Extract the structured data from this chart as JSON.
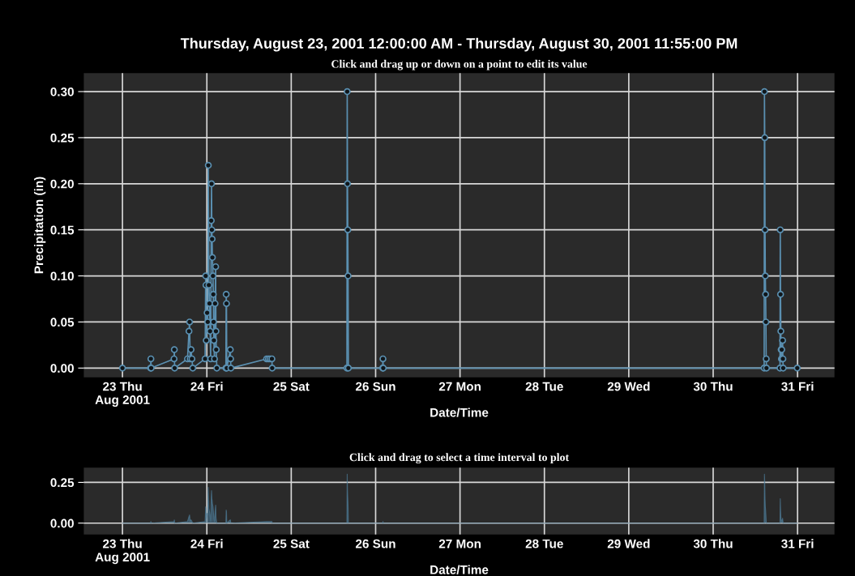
{
  "chart_data": [
    {
      "type": "line",
      "title": "Thursday, August 23, 2001 12:00:00 AM - Thursday, August 30, 2001 11:55:00 PM",
      "subtitle": "Click and drag up or down on a point to edit its value",
      "xlabel": "Date/Time",
      "ylabel": "Precipitation (in)",
      "xlim": [
        "2001-08-22T13:00",
        "2001-08-31T10:30"
      ],
      "ylim": [
        -0.01,
        0.32
      ],
      "xticks": [
        {
          "value": "2001-08-23",
          "label": "23 Thu\nAug 2001"
        },
        {
          "value": "2001-08-24",
          "label": "24 Fri"
        },
        {
          "value": "2001-08-25",
          "label": "25 Sat"
        },
        {
          "value": "2001-08-26",
          "label": "26 Sun"
        },
        {
          "value": "2001-08-27",
          "label": "27 Mon"
        },
        {
          "value": "2001-08-28",
          "label": "28 Tue"
        },
        {
          "value": "2001-08-29",
          "label": "29 Wed"
        },
        {
          "value": "2001-08-30",
          "label": "30 Thu"
        },
        {
          "value": "2001-08-31",
          "label": "31 Fri"
        }
      ],
      "yticks": [
        {
          "value": 0,
          "label": "0.00"
        },
        {
          "value": 0.05,
          "label": "0.05"
        },
        {
          "value": 0.1,
          "label": "0.10"
        },
        {
          "value": 0.15,
          "label": "0.15"
        },
        {
          "value": 0.2,
          "label": "0.20"
        },
        {
          "value": 0.25,
          "label": "0.25"
        },
        {
          "value": 0.3,
          "label": "0.30"
        }
      ],
      "grid": true,
      "marker": "circle",
      "line_style": "solid",
      "series": [
        {
          "color": "#5a8fb0",
          "x": [
            "2001-08-23T00:00",
            "2001-08-23T08:00",
            "2001-08-23T08:05",
            "2001-08-23T08:10",
            "2001-08-23T14:40",
            "2001-08-23T14:45",
            "2001-08-23T14:50",
            "2001-08-23T18:30",
            "2001-08-23T18:55",
            "2001-08-23T19:05",
            "2001-08-23T19:15",
            "2001-08-23T19:30",
            "2001-08-23T19:45",
            "2001-08-23T20:00",
            "2001-08-23T23:30",
            "2001-08-23T23:40",
            "2001-08-23T23:45",
            "2001-08-23T23:50",
            "2001-08-24T00:05",
            "2001-08-24T00:15",
            "2001-08-24T00:25",
            "2001-08-24T00:35",
            "2001-08-24T00:45",
            "2001-08-24T00:55",
            "2001-08-24T01:05",
            "2001-08-24T01:15",
            "2001-08-24T01:20",
            "2001-08-24T01:25",
            "2001-08-24T01:30",
            "2001-08-24T01:35",
            "2001-08-24T01:45",
            "2001-08-24T01:50",
            "2001-08-24T01:55",
            "2001-08-24T02:00",
            "2001-08-24T02:10",
            "2001-08-24T02:20",
            "2001-08-24T02:30",
            "2001-08-24T02:35",
            "2001-08-24T02:40",
            "2001-08-24T02:50",
            "2001-08-24T05:25",
            "2001-08-24T05:30",
            "2001-08-24T05:35",
            "2001-08-24T05:40",
            "2001-08-24T06:40",
            "2001-08-24T06:45",
            "2001-08-24T06:50",
            "2001-08-24T17:00",
            "2001-08-24T17:30",
            "2001-08-24T18:00",
            "2001-08-24T18:30",
            "2001-08-24T18:35",
            "2001-08-25T15:50",
            "2001-08-25T15:55",
            "2001-08-25T16:00",
            "2001-08-25T16:05",
            "2001-08-25T16:10",
            "2001-08-25T16:15",
            "2001-08-26T02:00",
            "2001-08-26T02:05",
            "2001-08-26T02:10",
            "2001-08-30T14:30",
            "2001-08-30T14:35",
            "2001-08-30T14:40",
            "2001-08-30T14:45",
            "2001-08-30T14:50",
            "2001-08-30T14:55",
            "2001-08-30T15:00",
            "2001-08-30T15:05",
            "2001-08-30T15:10",
            "2001-08-30T19:00",
            "2001-08-30T19:05",
            "2001-08-30T19:10",
            "2001-08-30T19:15",
            "2001-08-30T19:20",
            "2001-08-30T19:25",
            "2001-08-30T19:30",
            "2001-08-30T19:35",
            "2001-08-30T19:45",
            "2001-08-30T19:50",
            "2001-08-30T19:55",
            "2001-08-30T23:55"
          ],
          "values": [
            0,
            0,
            0.01,
            0,
            0.01,
            0.02,
            0,
            0.01,
            0.04,
            0.05,
            0.01,
            0.02,
            0.01,
            0,
            0.01,
            0.1,
            0.09,
            0.03,
            0.06,
            0.05,
            0.22,
            0.09,
            0.07,
            0.04,
            0.01,
            0.16,
            0.2,
            0.15,
            0.14,
            0.12,
            0.1,
            0.08,
            0.05,
            0.03,
            0.01,
            0.07,
            0.11,
            0.04,
            0.02,
            0,
            0,
            0.08,
            0.07,
            0,
            0.02,
            0.01,
            0,
            0.01,
            0.01,
            0.01,
            0.01,
            0,
            0,
            0.3,
            0.2,
            0.15,
            0.1,
            0,
            0,
            0.01,
            0,
            0,
            0.3,
            0.25,
            0.15,
            0.1,
            0.08,
            0.05,
            0.01,
            0,
            0,
            0.15,
            0.08,
            0.04,
            0.02,
            0.01,
            0.02,
            0.01,
            0.03,
            0.01,
            0,
            0
          ]
        }
      ]
    },
    {
      "type": "area",
      "title": "Click and drag to select a time interval to plot",
      "xlabel": "Date/Time",
      "xlim": [
        "2001-08-22T13:00",
        "2001-08-31T10:30"
      ],
      "ylim": [
        -0.07,
        0.34
      ],
      "xticks": [
        {
          "value": "2001-08-23",
          "label": "23 Thu\nAug 2001"
        },
        {
          "value": "2001-08-24",
          "label": "24 Fri"
        },
        {
          "value": "2001-08-25",
          "label": "25 Sat"
        },
        {
          "value": "2001-08-26",
          "label": "26 Sun"
        },
        {
          "value": "2001-08-27",
          "label": "27 Mon"
        },
        {
          "value": "2001-08-28",
          "label": "28 Tue"
        },
        {
          "value": "2001-08-29",
          "label": "29 Wed"
        },
        {
          "value": "2001-08-30",
          "label": "30 Thu"
        },
        {
          "value": "2001-08-31",
          "label": "31 Fri"
        }
      ],
      "yticks": [
        {
          "value": 0,
          "label": "0.00"
        },
        {
          "value": 0.25,
          "label": "0.25"
        }
      ],
      "grid": true,
      "series": [
        {
          "color": "#4d7a96",
          "x": [
            "2001-08-23T00:00",
            "2001-08-23T08:00",
            "2001-08-23T08:05",
            "2001-08-23T08:10",
            "2001-08-23T14:40",
            "2001-08-23T14:45",
            "2001-08-23T14:50",
            "2001-08-23T18:30",
            "2001-08-23T18:55",
            "2001-08-23T19:05",
            "2001-08-23T19:15",
            "2001-08-23T19:30",
            "2001-08-23T19:45",
            "2001-08-23T20:00",
            "2001-08-23T23:30",
            "2001-08-23T23:40",
            "2001-08-23T23:45",
            "2001-08-23T23:50",
            "2001-08-24T00:05",
            "2001-08-24T00:15",
            "2001-08-24T00:25",
            "2001-08-24T00:35",
            "2001-08-24T00:45",
            "2001-08-24T00:55",
            "2001-08-24T01:05",
            "2001-08-24T01:15",
            "2001-08-24T01:20",
            "2001-08-24T01:25",
            "2001-08-24T01:30",
            "2001-08-24T01:35",
            "2001-08-24T01:45",
            "2001-08-24T01:50",
            "2001-08-24T01:55",
            "2001-08-24T02:00",
            "2001-08-24T02:10",
            "2001-08-24T02:20",
            "2001-08-24T02:30",
            "2001-08-24T02:35",
            "2001-08-24T02:40",
            "2001-08-24T02:50",
            "2001-08-24T05:25",
            "2001-08-24T05:30",
            "2001-08-24T05:35",
            "2001-08-24T05:40",
            "2001-08-24T06:40",
            "2001-08-24T06:45",
            "2001-08-24T06:50",
            "2001-08-24T17:00",
            "2001-08-24T17:30",
            "2001-08-24T18:00",
            "2001-08-24T18:30",
            "2001-08-24T18:35",
            "2001-08-25T15:50",
            "2001-08-25T15:55",
            "2001-08-25T16:00",
            "2001-08-25T16:05",
            "2001-08-25T16:10",
            "2001-08-25T16:15",
            "2001-08-26T02:00",
            "2001-08-26T02:05",
            "2001-08-26T02:10",
            "2001-08-30T14:30",
            "2001-08-30T14:35",
            "2001-08-30T14:40",
            "2001-08-30T14:45",
            "2001-08-30T14:50",
            "2001-08-30T14:55",
            "2001-08-30T15:00",
            "2001-08-30T15:05",
            "2001-08-30T15:10",
            "2001-08-30T19:00",
            "2001-08-30T19:05",
            "2001-08-30T19:10",
            "2001-08-30T19:15",
            "2001-08-30T19:20",
            "2001-08-30T19:25",
            "2001-08-30T19:30",
            "2001-08-30T19:35",
            "2001-08-30T19:45",
            "2001-08-30T19:50",
            "2001-08-30T19:55",
            "2001-08-30T23:55"
          ],
          "values": [
            0,
            0,
            0.01,
            0,
            0.01,
            0.02,
            0,
            0.01,
            0.04,
            0.05,
            0.01,
            0.02,
            0.01,
            0,
            0.01,
            0.1,
            0.09,
            0.03,
            0.06,
            0.05,
            0.22,
            0.09,
            0.07,
            0.04,
            0.01,
            0.16,
            0.2,
            0.15,
            0.14,
            0.12,
            0.1,
            0.08,
            0.05,
            0.03,
            0.01,
            0.07,
            0.11,
            0.04,
            0.02,
            0,
            0,
            0.08,
            0.07,
            0,
            0.02,
            0.01,
            0,
            0.01,
            0.01,
            0.01,
            0.01,
            0,
            0,
            0.3,
            0.2,
            0.15,
            0.1,
            0,
            0,
            0.01,
            0,
            0,
            0.3,
            0.25,
            0.15,
            0.1,
            0.08,
            0.05,
            0.01,
            0,
            0,
            0.15,
            0.08,
            0.04,
            0.02,
            0.01,
            0.02,
            0.01,
            0.03,
            0.01,
            0,
            0
          ]
        }
      ]
    }
  ]
}
